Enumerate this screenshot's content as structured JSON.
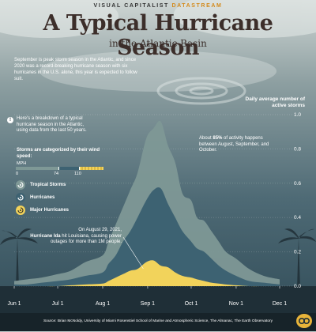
{
  "header": {
    "brand": "VISUAL CAPITALIST",
    "brand_accent": "DATASTREAM",
    "title": "A Typical Hurricane Season",
    "subtitle": "in the Atlantic Basin"
  },
  "intro_text": "September is peak storm season in the Atlantic, and since 2020 was a record-breaking hurricane season with six hurricanes in the U.S. alone, this year is expected to follow suit.",
  "breakdown_text": "Here's a breakdown of a typical hurricane season in the Atlantic, using data from the last 50 years.",
  "categories": {
    "title": "Storms are categorized by their wind speed:",
    "unit": "MPH",
    "thresholds": [
      "0",
      "74",
      "110"
    ],
    "items": [
      {
        "label": "Tropical Storms",
        "color": "#7e9896"
      },
      {
        "label": "Hurricanes",
        "color": "#3d6272"
      },
      {
        "label": "Major Hurricanes",
        "color": "#f2d35b"
      }
    ]
  },
  "annotations": {
    "peak_prefix": "About ",
    "peak_bold": "85%",
    "peak_suffix": " of activity happens between August, September, and October.",
    "ida_date": "On August 29, 2021,",
    "ida_bold": "Hurricane Ida",
    "ida_suffix": " hit Louisiana, causing power outages for more than 1M people."
  },
  "source": "Source: Brian McNoldy, University of Miami Rosenstiel School of Marine and Atmospheric Science, The Almanac, The Earth Observatory",
  "chart_data": {
    "type": "area",
    "ylabel": "Daily average number of active storms",
    "ylim": [
      0,
      1.0
    ],
    "yticks": [
      "0.0",
      "0.2",
      "0.4",
      "0.6",
      "0.8",
      "1.0"
    ],
    "xticks": [
      "Jun 1",
      "Jul 1",
      "Aug 1",
      "Sep 1",
      "Oct 1",
      "Nov 1",
      "Dec 1"
    ],
    "x_dates": [
      "06-01",
      "06-10",
      "06-20",
      "07-01",
      "07-10",
      "07-20",
      "08-01",
      "08-05",
      "08-10",
      "08-15",
      "08-20",
      "08-25",
      "08-31",
      "09-05",
      "09-10",
      "09-15",
      "09-20",
      "09-25",
      "10-01",
      "10-05",
      "10-10",
      "10-15",
      "10-20",
      "10-25",
      "11-01",
      "11-10",
      "11-20",
      "12-01"
    ],
    "series": [
      {
        "name": "Tropical Storms",
        "color": "#7e9896",
        "values": [
          0.03,
          0.04,
          0.05,
          0.07,
          0.09,
          0.14,
          0.18,
          0.26,
          0.36,
          0.46,
          0.56,
          0.66,
          0.86,
          0.92,
          0.96,
          0.82,
          0.72,
          0.54,
          0.5,
          0.4,
          0.38,
          0.32,
          0.26,
          0.2,
          0.16,
          0.1,
          0.06,
          0.04
        ]
      },
      {
        "name": "Hurricanes",
        "color": "#3d6272",
        "values": [
          0.01,
          0.01,
          0.02,
          0.03,
          0.04,
          0.06,
          0.08,
          0.13,
          0.18,
          0.26,
          0.32,
          0.4,
          0.5,
          0.56,
          0.57,
          0.48,
          0.4,
          0.32,
          0.26,
          0.22,
          0.2,
          0.16,
          0.12,
          0.09,
          0.06,
          0.03,
          0.02,
          0.01
        ]
      },
      {
        "name": "Major Hurricanes",
        "color": "#f2d35b",
        "values": [
          0.0,
          0.0,
          0.0,
          0.0,
          0.005,
          0.01,
          0.015,
          0.03,
          0.05,
          0.07,
          0.09,
          0.1,
          0.14,
          0.15,
          0.12,
          0.11,
          0.08,
          0.06,
          0.05,
          0.04,
          0.03,
          0.02,
          0.015,
          0.01,
          0.005,
          0.0,
          0.0,
          0.0
        ]
      }
    ]
  }
}
